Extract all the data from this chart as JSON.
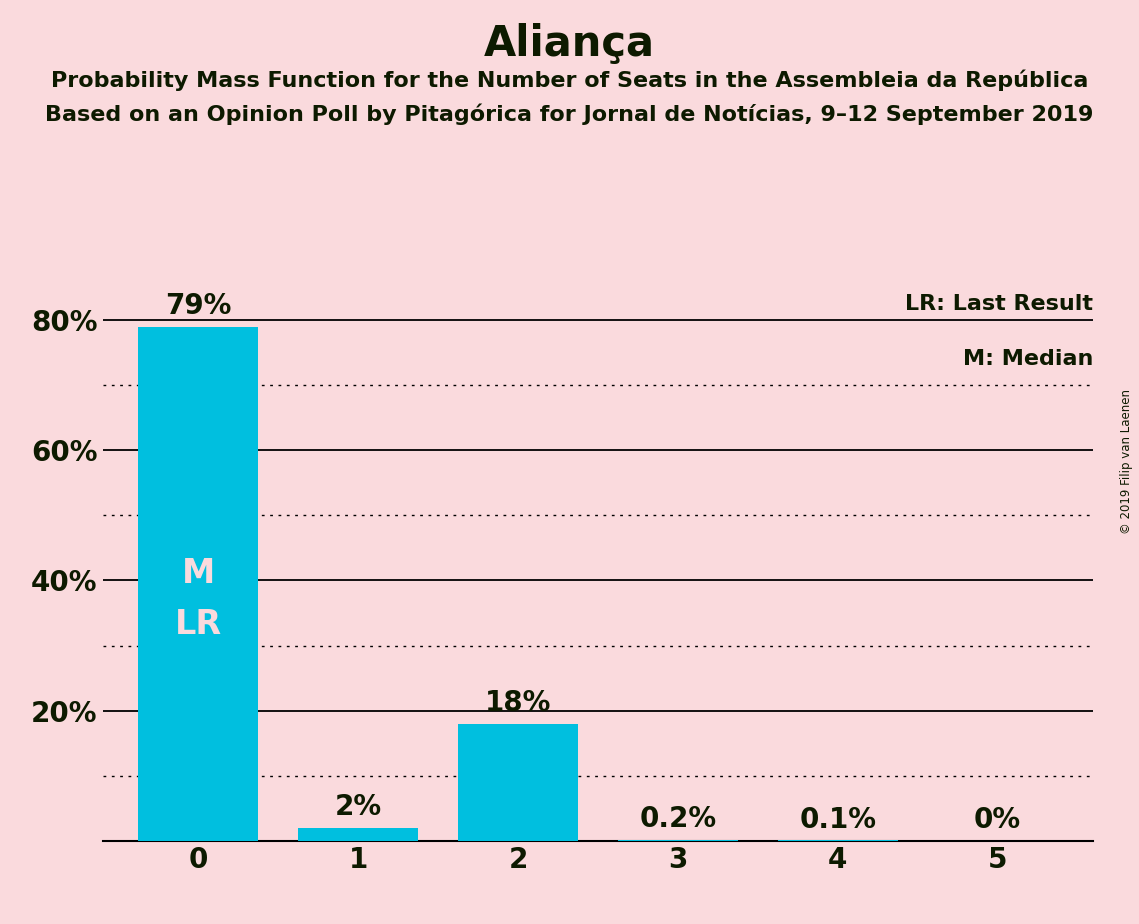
{
  "title": "Aliança",
  "subtitle1": "Probability Mass Function for the Number of Seats in the Assembleia da República",
  "subtitle2": "Based on an Opinion Poll by Pitagórica for Jornal de Notícias, 9–12 September 2019",
  "copyright": "© 2019 Filip van Laenen",
  "categories": [
    0,
    1,
    2,
    3,
    4,
    5
  ],
  "values": [
    79,
    2,
    18,
    0.2,
    0.1,
    0
  ],
  "value_labels": [
    "79%",
    "2%",
    "18%",
    "0.2%",
    "0.1%",
    "0%"
  ],
  "bar_color": "#00BFDF",
  "background_color": "#FADADD",
  "text_color": "#0d1a00",
  "bar_label_color_inside": "#FADADD",
  "bar_label_color_outside": "#0d1a00",
  "median_label": "M",
  "lr_label": "LR",
  "legend_lr": "LR: Last Result",
  "legend_m": "M: Median",
  "ylim": [
    0,
    88
  ],
  "yticks": [
    20,
    40,
    60,
    80
  ],
  "ytick_labels": [
    "20%",
    "40%",
    "60%",
    "80%"
  ],
  "solid_gridlines": [
    20,
    40,
    60,
    80
  ],
  "dotted_gridlines": [
    10,
    30,
    50,
    70
  ],
  "title_fontsize": 30,
  "subtitle_fontsize": 16,
  "axis_fontsize": 20,
  "bar_label_fontsize": 20,
  "legend_fontsize": 16,
  "ml_label_fontsize": 24
}
